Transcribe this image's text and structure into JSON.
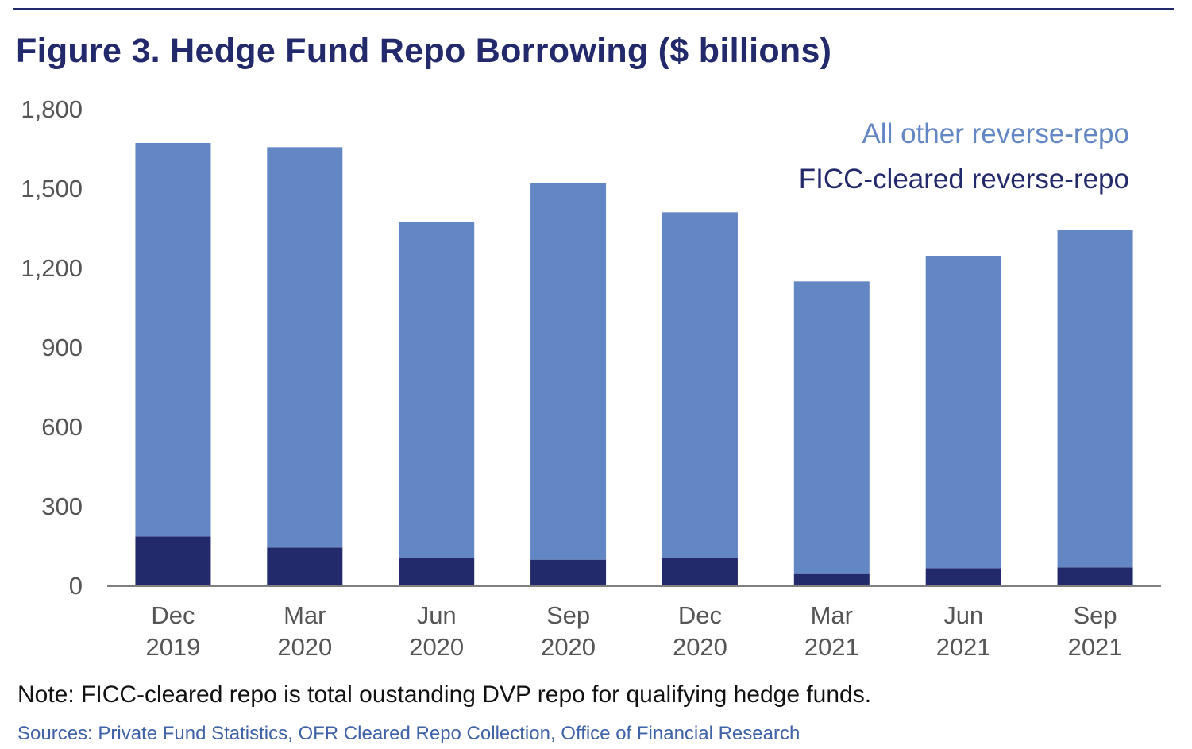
{
  "title": "Figure 3. Hedge Fund Repo Borrowing ($ billions)",
  "note": "Note:  FICC-cleared repo is total oustanding DVP repo for qualifying hedge funds.",
  "sources": "Sources:  Private Fund Statistics, OFR Cleared Repo Collection, Office of Financial Research",
  "colors": {
    "title": "#232a6b",
    "ficc": "#232a6b",
    "other": "#6386c4",
    "sources": "#3f62a8",
    "axis_text": "#555555"
  },
  "chart_data": {
    "type": "bar",
    "stacked": true,
    "categories": [
      [
        "Dec",
        "2019"
      ],
      [
        "Mar",
        "2020"
      ],
      [
        "Jun",
        "2020"
      ],
      [
        "Sep",
        "2020"
      ],
      [
        "Dec",
        "2020"
      ],
      [
        "Mar",
        "2021"
      ],
      [
        "Jun",
        "2021"
      ],
      [
        "Sep",
        "2021"
      ]
    ],
    "series": [
      {
        "name": "FICC-cleared reverse-repo",
        "color": "#232a6b",
        "values": [
          185,
          143,
          103,
          97,
          105,
          43,
          65,
          68
        ]
      },
      {
        "name": "All other reverse-repo",
        "color": "#6386c4",
        "values": [
          1486,
          1512,
          1269,
          1423,
          1304,
          1105,
          1180,
          1275
        ]
      }
    ],
    "legend_order": [
      "All other reverse-repo",
      "FICC-cleared reverse-repo"
    ],
    "legend_position": "top-right",
    "ylim": [
      0,
      1800
    ],
    "yticks": [
      0,
      300,
      600,
      900,
      1200,
      1500,
      1800
    ],
    "ytick_labels": [
      "0",
      "300",
      "600",
      "900",
      "1,200",
      "1,500",
      "1,800"
    ],
    "grid": false
  }
}
